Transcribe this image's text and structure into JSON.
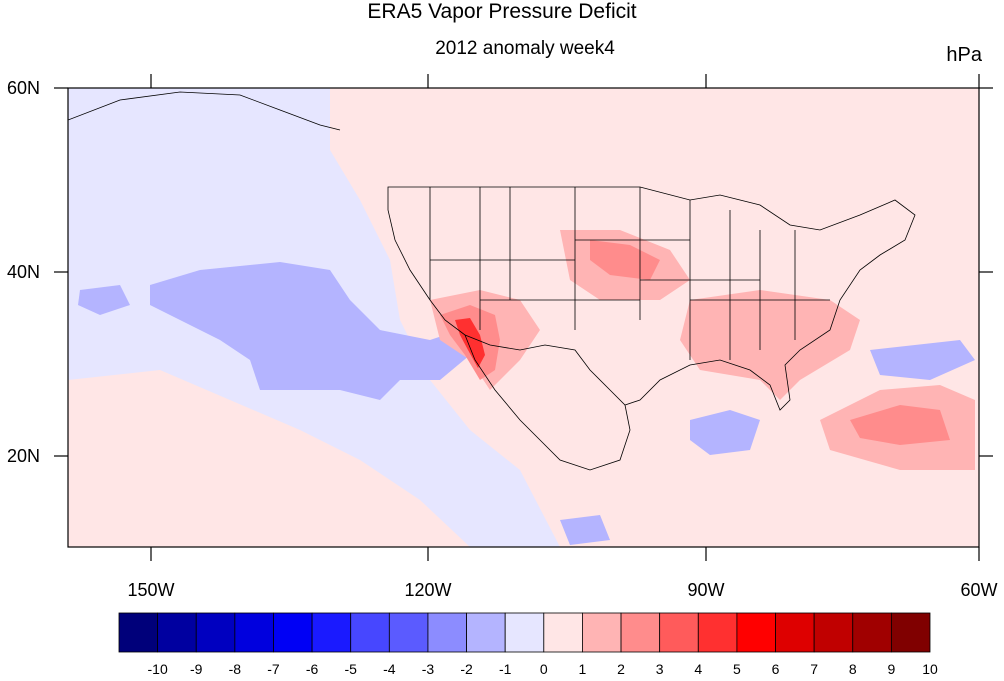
{
  "chart_data": {
    "type": "heatmap",
    "title": "ERA5 Vapor Pressure Deficit",
    "subtitle": "2012 anomaly week4",
    "units": "hPa",
    "x_ticks": [
      "150W",
      "120W",
      "90W",
      "60W"
    ],
    "y_ticks": [
      "60N",
      "40N",
      "20N"
    ],
    "xlim": [
      -159,
      -60
    ],
    "ylim": [
      10,
      60
    ],
    "colorbar": {
      "labels": [
        "-10",
        "-9",
        "-8",
        "-7",
        "-6",
        "-5",
        "-4",
        "-3",
        "-2",
        "-1",
        "0",
        "1",
        "2",
        "3",
        "4",
        "5",
        "6",
        "7",
        "8",
        "9",
        "10"
      ],
      "colors": [
        "#00007a",
        "#0000a0",
        "#0000c0",
        "#0000de",
        "#0000f5",
        "#1a1aff",
        "#4747ff",
        "#5b5bff",
        "#8c8cff",
        "#b4b4ff",
        "#e6e6ff",
        "#ffe6e6",
        "#ffb4b4",
        "#ff8c8c",
        "#ff5b5b",
        "#ff3030",
        "#ff0000",
        "#de0000",
        "#c00000",
        "#a00000",
        "#800000"
      ]
    }
  }
}
